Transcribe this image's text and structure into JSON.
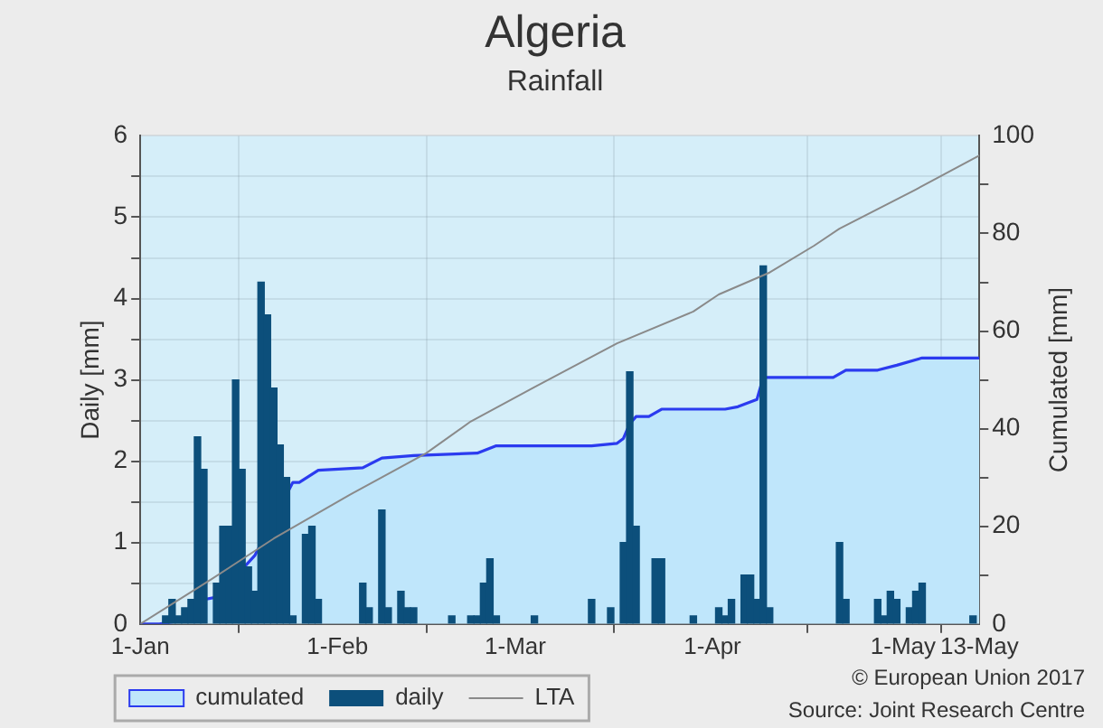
{
  "chart_data": {
    "type": "bar",
    "title": "Algeria",
    "subtitle": "Rainfall",
    "ylabel": "Daily [mm]",
    "y2label": "Cumulated [mm]",
    "xlim": [
      "--01-01",
      "--05-13"
    ],
    "xticks": [
      {
        "value": "--01-01",
        "label": "1-Jan"
      },
      {
        "value": "--02-01",
        "label": "1-Feb"
      },
      {
        "value": "--03-01",
        "label": "1-Mar"
      },
      {
        "value": "--04-01",
        "label": "1-Apr"
      },
      {
        "value": "--05-01",
        "label": "1-May"
      },
      {
        "value": "--05-13",
        "label": "13-May"
      }
    ],
    "ylim": [
      0,
      6
    ],
    "yticks": [
      0,
      {
        "value": 0.5,
        "label": null
      },
      1,
      {
        "value": 1.5,
        "label": null
      },
      2,
      {
        "value": 2.5,
        "label": null
      },
      3,
      {
        "value": 3.5,
        "label": null
      },
      4,
      {
        "value": 4.5,
        "label": null
      },
      5,
      {
        "value": 5.5,
        "label": null
      },
      6
    ],
    "y2lim": [
      0,
      100
    ],
    "y2ticks": [
      0,
      {
        "value": 10,
        "label": null
      },
      20,
      {
        "value": 30,
        "label": null
      },
      40,
      {
        "value": 50,
        "label": null
      },
      60,
      {
        "value": 70,
        "label": null
      },
      80,
      {
        "value": 90,
        "label": null
      },
      100
    ],
    "grid": true,
    "legend": "bottom left",
    "series": [
      {
        "name": "cumulated",
        "type": "area",
        "axis": "y2",
        "color": "#bfe6fb",
        "x": [
          "--01-01",
          "--01-04",
          "--01-09",
          "--01-11",
          "--01-13",
          "--01-19",
          "--01-25",
          "--01-26",
          "--01-29",
          "--02-05",
          "--02-08",
          "--02-13",
          "--02-23",
          "--02-26",
          "--03-13",
          "--03-17",
          "--03-18",
          "--03-19",
          "--03-20",
          "--03-22",
          "--03-24",
          "--04-03",
          "--04-05",
          "--04-08",
          "--04-09",
          "--04-20",
          "--04-22",
          "--04-27",
          "--04-30",
          "--05-04",
          "--05-13"
        ],
        "values": [
          0,
          0,
          1,
          5,
          5.5,
          14,
          29,
          29,
          31.5,
          32,
          34,
          34.5,
          35,
          36.5,
          36.5,
          37,
          38,
          41,
          42.5,
          42.5,
          44,
          44,
          44.5,
          46,
          50.5,
          50.5,
          52,
          52,
          53,
          54.5,
          54.5
        ]
      },
      {
        "name": "daily",
        "color": "#0c4f7b",
        "x": [
          "--01-05",
          "--01-06",
          "--01-07",
          "--01-08",
          "--01-09",
          "--01-10",
          "--01-11",
          "--01-13",
          "--01-14",
          "--01-15",
          "--01-16",
          "--01-17",
          "--01-18",
          "--01-19",
          "--01-20",
          "--01-21",
          "--01-22",
          "--01-23",
          "--01-24",
          "--01-25",
          "--01-27",
          "--01-28",
          "--01-29",
          "--02-05",
          "--02-06",
          "--02-08",
          "--02-09",
          "--02-11",
          "--02-12",
          "--02-13",
          "--02-19",
          "--02-22",
          "--02-23",
          "--02-24",
          "--02-25",
          "--02-26",
          "--03-04",
          "--03-13",
          "--03-16",
          "--03-18",
          "--03-19",
          "--03-20",
          "--03-23",
          "--03-24",
          "--03-29",
          "--04-02",
          "--04-03",
          "--04-04",
          "--04-06",
          "--04-07",
          "--04-08",
          "--04-09",
          "--04-10",
          "--04-21",
          "--04-22",
          "--04-27",
          "--04-28",
          "--04-29",
          "--04-30",
          "--05-02",
          "--05-03",
          "--05-04",
          "--05-12"
        ],
        "values": [
          0.1,
          0.3,
          0.1,
          0.2,
          0.3,
          2.3,
          1.9,
          0.5,
          1.2,
          1.2,
          3.0,
          1.9,
          0.7,
          0.4,
          4.2,
          3.8,
          2.9,
          2.2,
          1.8,
          0.1,
          1.1,
          1.2,
          0.3,
          0.5,
          0.2,
          1.4,
          0.2,
          0.4,
          0.2,
          0.2,
          0.1,
          0.1,
          0.1,
          0.5,
          0.8,
          0.1,
          0.1,
          0.3,
          0.2,
          1.0,
          3.1,
          1.2,
          0.8,
          0.8,
          0.1,
          0.2,
          0.1,
          0.3,
          0.6,
          0.6,
          0.3,
          4.4,
          0.2,
          1.0,
          0.3,
          0.3,
          0.1,
          0.4,
          0.3,
          0.2,
          0.4,
          0.5,
          0.1
        ]
      },
      {
        "name": "LTA",
        "type": "line",
        "axis": "y2",
        "color": "#8a8a8a",
        "x": [
          "--01-01",
          "--01-12",
          "--01-22",
          "--02-03",
          "--02-15",
          "--02-22",
          "--03-04",
          "--03-17",
          "--03-29",
          "--04-02",
          "--04-10",
          "--04-17",
          "--04-21",
          "--05-03",
          "--05-13"
        ],
        "values": [
          0,
          9,
          17.5,
          26.5,
          35,
          41.5,
          48.5,
          57.5,
          64,
          67.5,
          72,
          77.5,
          81,
          89,
          96
        ]
      }
    ],
    "annotations": [
      "© European Union 2017",
      "Source: Joint Research Centre"
    ]
  }
}
